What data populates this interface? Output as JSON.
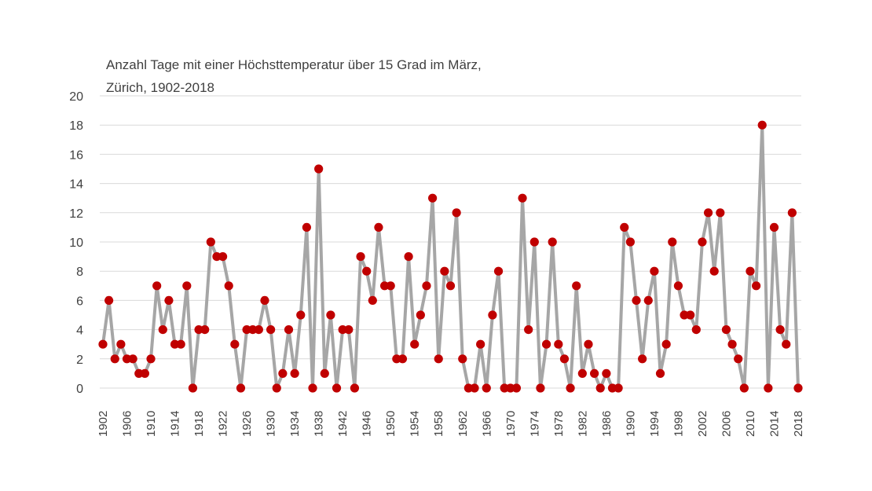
{
  "chart_data": {
    "type": "line",
    "title": [
      "Anzahl Tage mit einer Höchsttemperatur über 15 Grad im März,",
      "Zürich, 1902-2018"
    ],
    "xlabel": "",
    "ylabel": "",
    "ylim": [
      0,
      20
    ],
    "yticks": [
      "0",
      "2",
      "4",
      "6",
      "8",
      "10",
      "12",
      "14",
      "16",
      "18",
      "20"
    ],
    "xlim": [
      1902,
      2018
    ],
    "xticks": [
      "1902",
      "1906",
      "1910",
      "1914",
      "1918",
      "1922",
      "1926",
      "1930",
      "1934",
      "1938",
      "1942",
      "1946",
      "1950",
      "1954",
      "1958",
      "1962",
      "1966",
      "1970",
      "1974",
      "1978",
      "1982",
      "1986",
      "1990",
      "1994",
      "1998",
      "2002",
      "2006",
      "2010",
      "2014",
      "2018"
    ],
    "grid": "horizontal",
    "legend": "none",
    "line_color": "#a6a6a6",
    "marker_color": "#c00000",
    "series": [
      {
        "x": [
          1902,
          1903,
          1904,
          1905,
          1906,
          1907,
          1908,
          1909,
          1910,
          1911,
          1912,
          1913,
          1914,
          1915,
          1916,
          1917,
          1918,
          1919,
          1920,
          1921,
          1922,
          1923,
          1924,
          1925,
          1926,
          1927,
          1928,
          1929,
          1930,
          1931,
          1932,
          1933,
          1934,
          1935,
          1936,
          1937,
          1938,
          1939,
          1940,
          1941,
          1942,
          1943,
          1944,
          1945,
          1946,
          1947,
          1948,
          1949,
          1950,
          1951,
          1952,
          1953,
          1954,
          1955,
          1956,
          1957,
          1958,
          1959,
          1960,
          1961,
          1962,
          1963,
          1964,
          1965,
          1966,
          1967,
          1968,
          1969,
          1970,
          1971,
          1972,
          1973,
          1974,
          1975,
          1976,
          1977,
          1978,
          1979,
          1980,
          1981,
          1982,
          1983,
          1984,
          1985,
          1986,
          1987,
          1988,
          1989,
          1990,
          1991,
          1992,
          1993,
          1994,
          1995,
          1996,
          1997,
          1998,
          1999,
          2000,
          2001,
          2002,
          2003,
          2004,
          2005,
          2006,
          2007,
          2008,
          2009,
          2010,
          2011,
          2012,
          2013,
          2014,
          2015,
          2016,
          2017,
          2018
        ],
        "values": [
          3,
          6,
          2,
          3,
          2,
          2,
          1,
          1,
          2,
          7,
          4,
          6,
          3,
          3,
          7,
          0,
          4,
          4,
          10,
          9,
          9,
          7,
          3,
          0,
          4,
          4,
          4,
          6,
          4,
          0,
          1,
          4,
          1,
          5,
          11,
          0,
          15,
          1,
          5,
          0,
          4,
          4,
          0,
          9,
          8,
          6,
          11,
          7,
          7,
          2,
          2,
          9,
          3,
          5,
          7,
          13,
          2,
          8,
          7,
          12,
          2,
          0,
          0,
          3,
          0,
          5,
          8,
          0,
          0,
          0,
          13,
          4,
          10,
          0,
          3,
          10,
          3,
          2,
          0,
          7,
          1,
          3,
          1,
          0,
          1,
          0,
          0,
          11,
          10,
          6,
          2,
          6,
          8,
          1,
          3,
          10,
          7,
          5,
          5,
          4,
          10,
          12,
          8,
          12,
          4,
          3,
          2,
          0,
          8,
          7,
          18,
          0,
          11,
          4,
          3,
          12,
          0
        ]
      }
    ]
  }
}
